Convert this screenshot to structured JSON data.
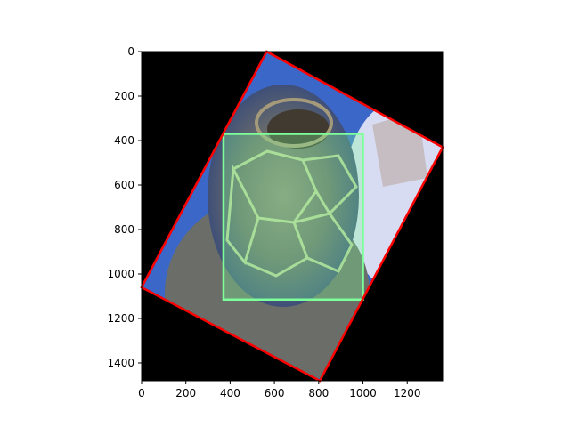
{
  "chart_data": {
    "type": "image",
    "title": "",
    "xlabel": "",
    "ylabel": "",
    "xlim": [
      0,
      1360
    ],
    "ylim": [
      1480,
      0
    ],
    "y_inverted": true,
    "x_ticks": [
      0,
      200,
      400,
      600,
      800,
      1000,
      1200
    ],
    "y_ticks": [
      0,
      200,
      400,
      600,
      800,
      1000,
      1200,
      1400
    ],
    "image_background": "#000000",
    "subject": "sea turtle head on blue background, rotated",
    "annotations": [
      {
        "kind": "rotated-rectangle",
        "color": "#ff0000",
        "corners": [
          [
            565,
            0
          ],
          [
            1360,
            430
          ],
          [
            805,
            1480
          ],
          [
            0,
            1060
          ]
        ]
      },
      {
        "kind": "rectangle",
        "color": "#7dff9a",
        "fill_alpha": 0.3,
        "x0": 370,
        "y0": 370,
        "x1": 1000,
        "y1": 1115
      }
    ]
  }
}
